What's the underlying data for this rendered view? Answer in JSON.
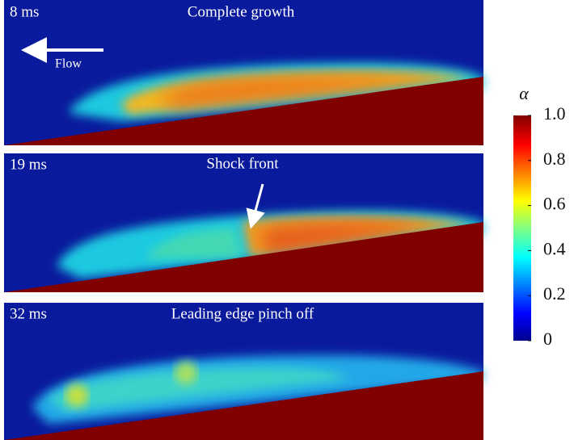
{
  "panels": [
    {
      "time": "8 ms",
      "caption": "Complete growth",
      "annotation": "Flow"
    },
    {
      "time": "19 ms",
      "caption": "Shock front"
    },
    {
      "time": "32 ms",
      "caption": "Leading edge pinch off"
    }
  ],
  "colorbar": {
    "label": "α",
    "lim": [
      0,
      1
    ],
    "ticks": [
      0,
      0.2,
      0.4,
      0.6,
      0.8,
      {
        "value": 1,
        "label": "1.0"
      }
    ]
  }
}
